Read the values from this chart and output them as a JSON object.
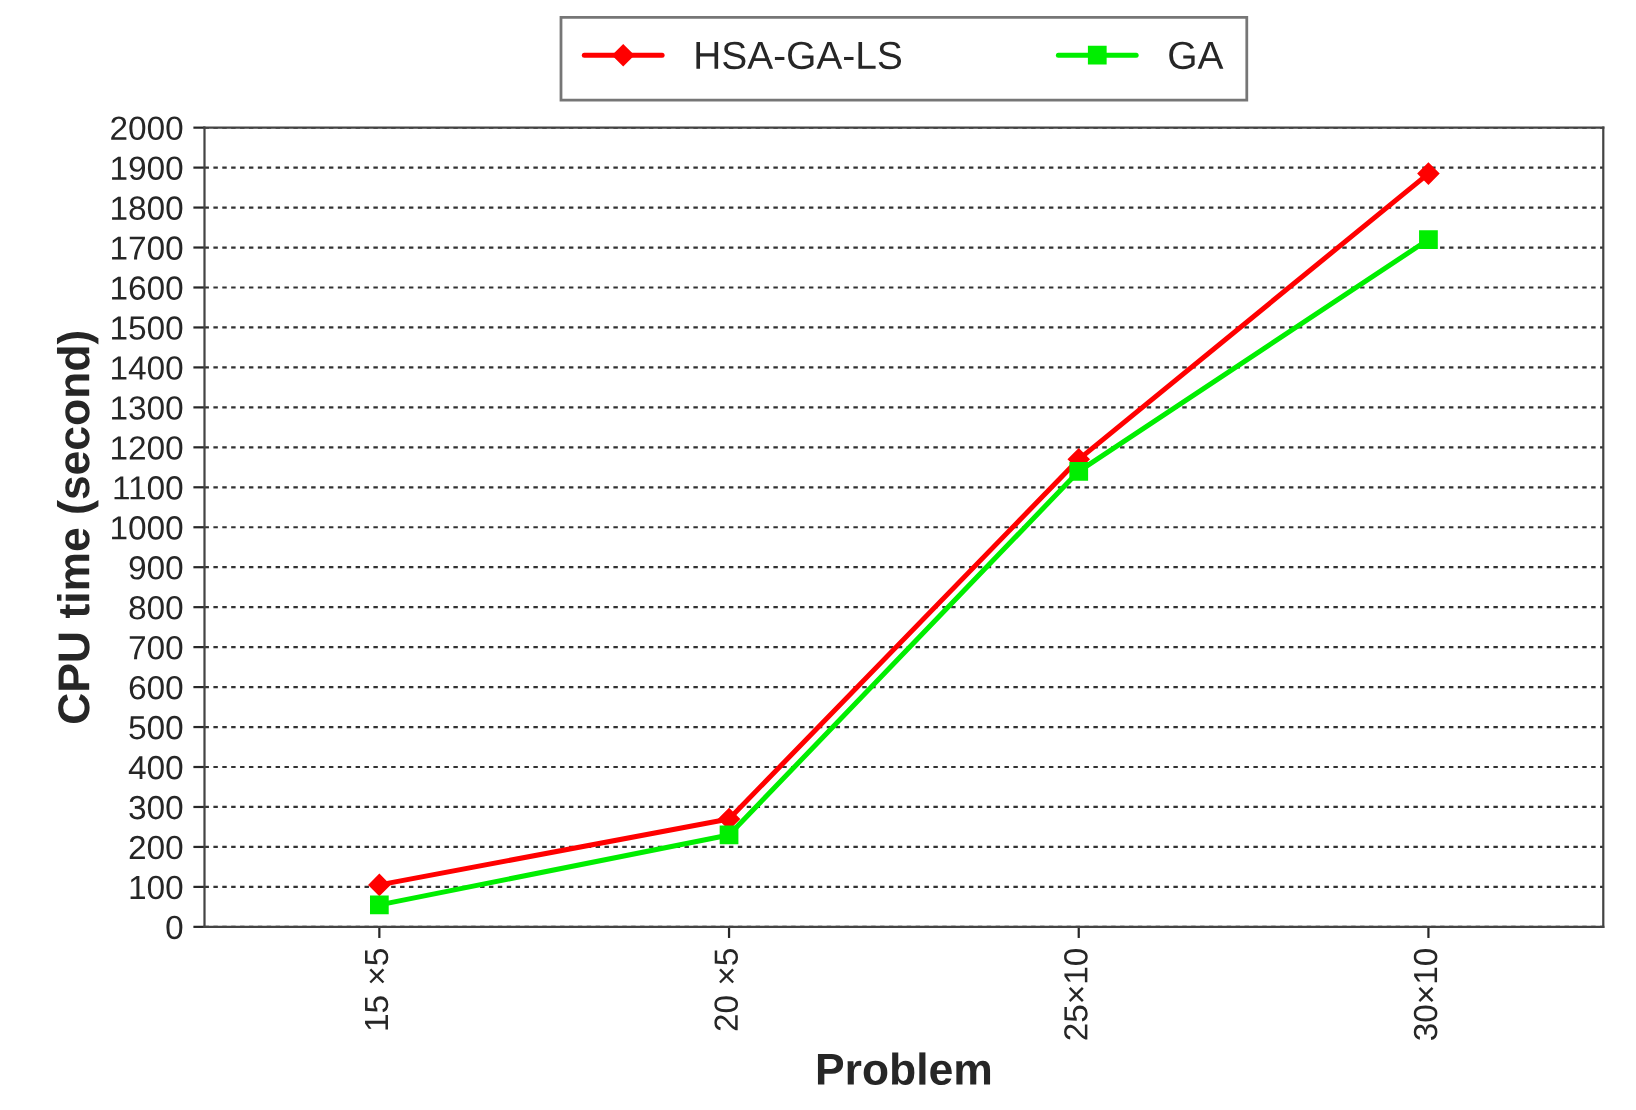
{
  "chart_data": {
    "type": "line",
    "xlabel": "Problem",
    "ylabel": "CPU time (second)",
    "categories": [
      "15 ×5",
      "20 ×5",
      "25×10",
      "30×10"
    ],
    "series": [
      {
        "name": "HSA-GA-LS",
        "color": "#ff0000",
        "marker": "diamond",
        "values": [
          105,
          270,
          1170,
          1885
        ]
      },
      {
        "name": "GA",
        "color": "#00ee00",
        "marker": "square",
        "values": [
          55,
          230,
          1140,
          1720
        ]
      }
    ],
    "ylim": [
      0,
      2000
    ],
    "yticks": [
      0,
      100,
      200,
      300,
      400,
      500,
      600,
      700,
      800,
      900,
      1000,
      1100,
      1200,
      1300,
      1400,
      1500,
      1600,
      1700,
      1800,
      1900,
      2000
    ],
    "grid": "y",
    "legend": "top",
    "line_style": "solid"
  }
}
